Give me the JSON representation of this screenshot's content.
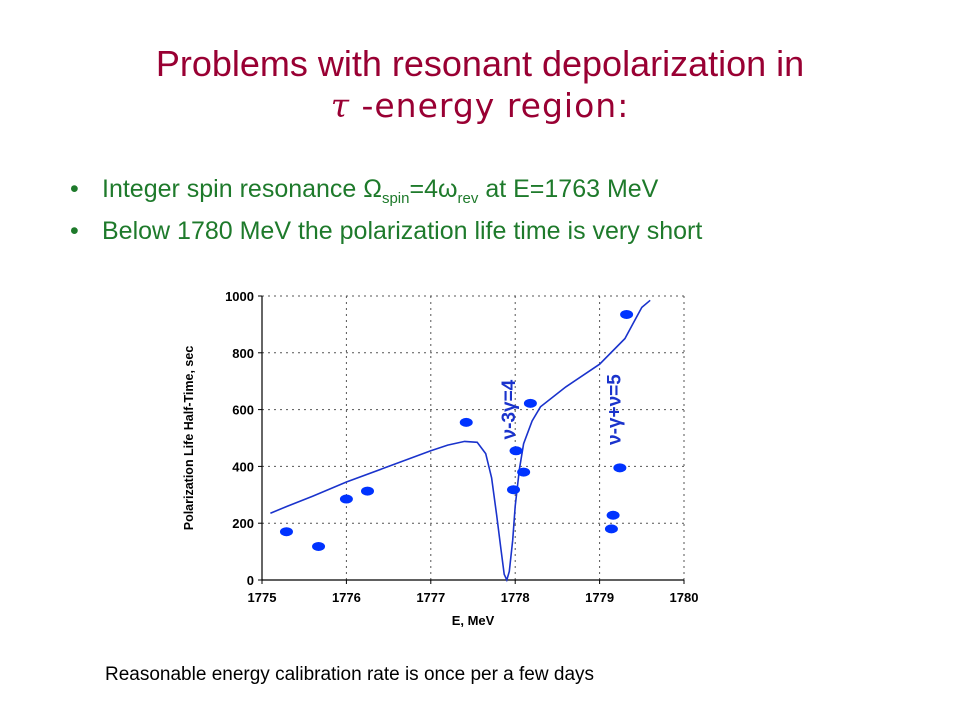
{
  "slide": {
    "title_line1": "Problems with resonant depolarization in",
    "title_tau": "τ",
    "title_line2": " -energy region:",
    "bullet_symbol": "•",
    "bullets": [
      {
        "pre": "Integer spin resonance Ω",
        "sub1": "spin",
        "mid": "=4ω",
        "sub2": "rev",
        "post": " at E=1763 MeV"
      },
      {
        "text": "Below 1780 MeV the polarization  life time is very short"
      }
    ],
    "note": "Reasonable  energy calibration rate is once per a few days"
  },
  "colors": {
    "title": "#990033",
    "bullets": "#1e7a2b",
    "data": "#0033ff",
    "curve": "#1a33cc"
  },
  "chart_data": {
    "type": "scatter",
    "xlabel": "E, MeV",
    "ylabel": "Polarization Life Half-Time, sec",
    "xlim": [
      1775,
      1780
    ],
    "ylim": [
      0,
      1000
    ],
    "xticks": [
      1775,
      1776,
      1777,
      1778,
      1779,
      1780
    ],
    "yticks": [
      0,
      200,
      400,
      600,
      800,
      1000
    ],
    "grid": "dotted",
    "points": [
      {
        "x": 1775.29,
        "y": 170
      },
      {
        "x": 1775.67,
        "y": 118
      },
      {
        "x": 1776.0,
        "y": 285
      },
      {
        "x": 1776.25,
        "y": 313
      },
      {
        "x": 1777.42,
        "y": 555
      },
      {
        "x": 1777.98,
        "y": 318
      },
      {
        "x": 1778.01,
        "y": 455
      },
      {
        "x": 1778.1,
        "y": 380
      },
      {
        "x": 1778.18,
        "y": 622
      },
      {
        "x": 1779.14,
        "y": 180
      },
      {
        "x": 1779.16,
        "y": 228
      },
      {
        "x": 1779.24,
        "y": 395
      },
      {
        "x": 1779.32,
        "y": 935
      }
    ],
    "curve": [
      [
        1775.1,
        235
      ],
      [
        1775.3,
        260
      ],
      [
        1775.6,
        295
      ],
      [
        1776.0,
        345
      ],
      [
        1776.5,
        400
      ],
      [
        1777.0,
        455
      ],
      [
        1777.2,
        475
      ],
      [
        1777.4,
        488
      ],
      [
        1777.55,
        485
      ],
      [
        1777.65,
        445
      ],
      [
        1777.72,
        360
      ],
      [
        1777.78,
        230
      ],
      [
        1777.83,
        110
      ],
      [
        1777.87,
        20
      ],
      [
        1777.9,
        0
      ],
      [
        1777.93,
        30
      ],
      [
        1777.97,
        140
      ],
      [
        1778.0,
        260
      ],
      [
        1778.05,
        390
      ],
      [
        1778.1,
        480
      ],
      [
        1778.2,
        560
      ],
      [
        1778.3,
        610
      ],
      [
        1778.6,
        680
      ],
      [
        1779.0,
        760
      ],
      [
        1779.3,
        850
      ],
      [
        1779.5,
        960
      ],
      [
        1779.6,
        985
      ]
    ],
    "annotations": [
      {
        "text": "ν-3γ=4",
        "x": 1778.0,
        "y": 600
      },
      {
        "text": "ν-γ+ν=5",
        "x": 1779.25,
        "y": 600
      }
    ]
  }
}
